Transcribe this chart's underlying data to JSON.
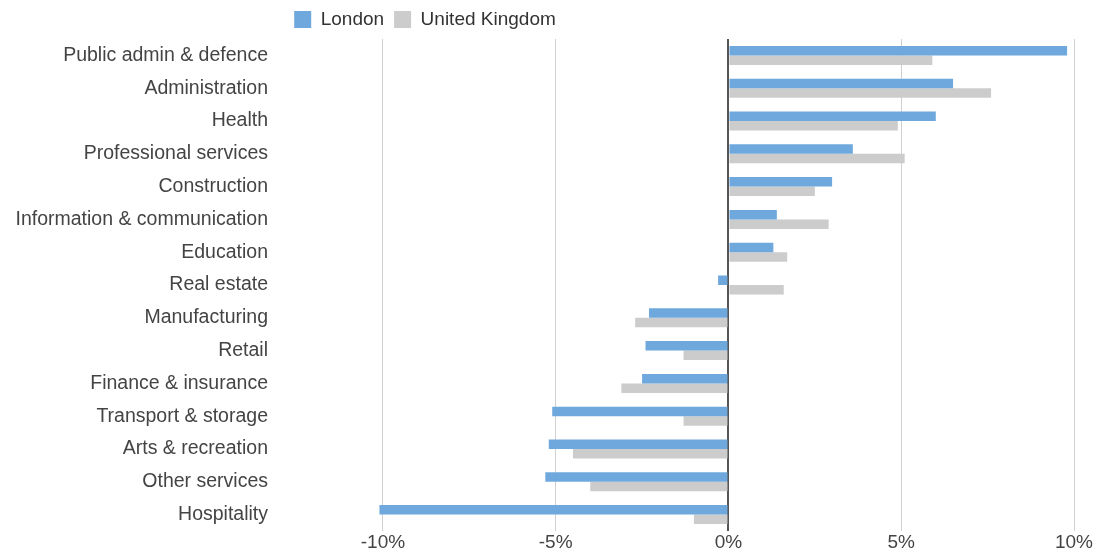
{
  "chart_data": {
    "type": "bar",
    "orientation": "horizontal",
    "categories": [
      "Public admin & defence",
      "Administration",
      "Health",
      "Professional services",
      "Construction",
      "Information & communication",
      "Education",
      "Real estate",
      "Manufacturing",
      "Retail",
      "Finance & insurance",
      "Transport & storage",
      "Arts & recreation",
      "Other services",
      "Hospitality"
    ],
    "series": [
      {
        "name": "London",
        "color": "#6fa8dc",
        "values": [
          9.8,
          6.5,
          6.0,
          3.6,
          3.0,
          1.4,
          1.3,
          -0.3,
          -2.3,
          -2.4,
          -2.5,
          -5.1,
          -5.2,
          -5.3,
          -10.1
        ]
      },
      {
        "name": "United Kingdom",
        "color": "#cccccc",
        "values": [
          5.9,
          7.6,
          4.9,
          5.1,
          2.5,
          2.9,
          1.7,
          1.6,
          -2.7,
          -1.3,
          -3.1,
          -1.3,
          -4.5,
          -4.0,
          -1.0
        ]
      }
    ],
    "xlim": [
      -10.2,
      10
    ],
    "xticks": [
      {
        "value": -10,
        "label": "-10%"
      },
      {
        "value": -5,
        "label": "-5%"
      },
      {
        "value": 0,
        "label": "0%"
      },
      {
        "value": 5,
        "label": "5%"
      },
      {
        "value": 10,
        "label": "10%"
      }
    ],
    "grid": "x",
    "legend": "top"
  }
}
